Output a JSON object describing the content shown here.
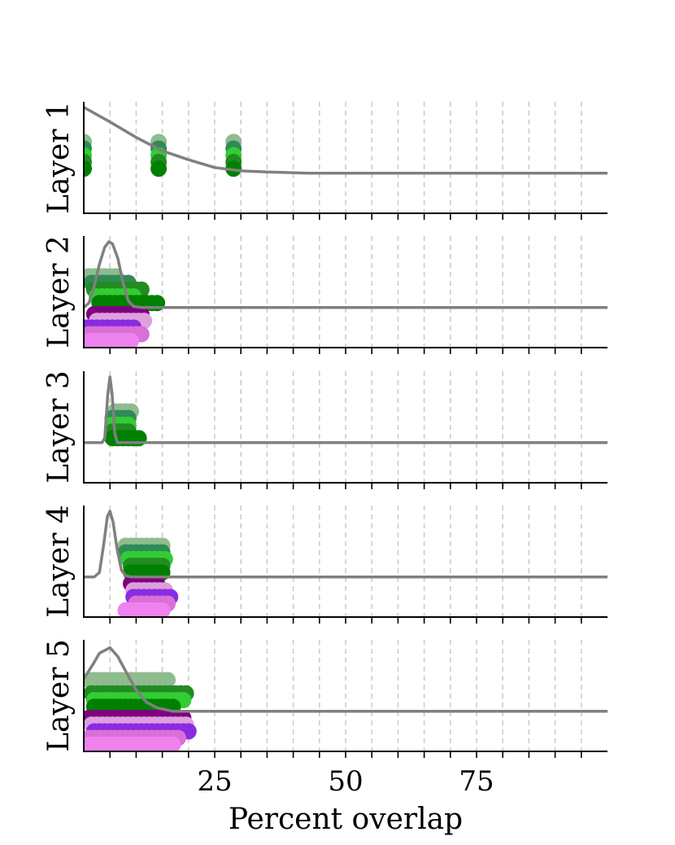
{
  "chart_data": {
    "type": "scatter",
    "xlabel": "Percent overlap",
    "xlim": [
      0,
      100
    ],
    "xticks": [
      25,
      50,
      75
    ],
    "minor_ticks": [
      5,
      10,
      15,
      20,
      25,
      30,
      35,
      40,
      45,
      50,
      55,
      60,
      65,
      70,
      75,
      80,
      85,
      90,
      95
    ],
    "grid": "vertical dashed",
    "colors": {
      "greens": [
        "#8fbc8f",
        "#2e8b57",
        "#32cd32",
        "#228b22",
        "#008000"
      ],
      "purples": [
        "#800080",
        "#dda0dd",
        "#8a2be2",
        "#da70d6",
        "#ee82ee"
      ],
      "density_line": "#808080"
    },
    "panels": [
      {
        "ylabel": "Layer 1",
        "rows": [
          {
            "color": "#8fbc8f",
            "level": 0.64,
            "x": [
              0,
              14.3,
              28.6
            ]
          },
          {
            "color": "#2e8b57",
            "level": 0.58,
            "x": [
              0,
              14.3,
              28.6
            ]
          },
          {
            "color": "#32cd32",
            "level": 0.52,
            "x": [
              0,
              14.3,
              28.6
            ]
          },
          {
            "color": "#228b22",
            "level": 0.46,
            "x": [
              0,
              14.3,
              28.6
            ]
          },
          {
            "color": "#008000",
            "level": 0.4,
            "x": [
              0,
              14.3,
              28.6
            ]
          }
        ],
        "density": [
          [
            0,
            0.95
          ],
          [
            5,
            0.82
          ],
          [
            10,
            0.68
          ],
          [
            15,
            0.56
          ],
          [
            20,
            0.48
          ],
          [
            25,
            0.41
          ],
          [
            30,
            0.38
          ],
          [
            35,
            0.37
          ],
          [
            43,
            0.36
          ],
          [
            100,
            0.36
          ]
        ]
      },
      {
        "ylabel": "Layer 2",
        "rows": [
          {
            "color": "#8fbc8f",
            "level": 0.64,
            "x": [
              1,
              2,
              3,
              4,
              5,
              6
            ]
          },
          {
            "color": "#2e8b57",
            "level": 0.58,
            "x": [
              1.5,
              2.5,
              3.5,
              4.5,
              5.5,
              6.5,
              7.5,
              8.5
            ]
          },
          {
            "color": "#228b22",
            "level": 0.52,
            "x": [
              2,
              3,
              4,
              5,
              6,
              7,
              8,
              9,
              10,
              11
            ]
          },
          {
            "color": "#32cd32",
            "level": 0.46,
            "x": [
              2.5,
              3.5,
              4.5,
              5.5,
              6.5,
              7.5,
              8.5,
              9.5
            ]
          },
          {
            "color": "#008000",
            "level": 0.4,
            "x": [
              3,
              4,
              5,
              6,
              7,
              8,
              9,
              10,
              11,
              12,
              13,
              14
            ]
          },
          {
            "color": "#800080",
            "level": 0.3,
            "x": [
              2,
              3,
              4,
              5,
              6,
              7,
              8,
              9,
              10,
              11
            ]
          },
          {
            "color": "#dda0dd",
            "level": 0.24,
            "x": [
              2.5,
              3.5,
              4.5,
              5.5,
              6.5,
              7.5,
              8.5,
              9.5,
              10.5,
              11.5
            ]
          },
          {
            "color": "#8a2be2",
            "level": 0.18,
            "x": [
              0.5,
              1.5,
              2.5,
              3.5,
              4.5,
              5.5,
              6.5,
              7.5,
              8.5,
              9.5
            ]
          },
          {
            "color": "#da70d6",
            "level": 0.12,
            "x": [
              1,
              2,
              3,
              4,
              5,
              6,
              7,
              8,
              9,
              10,
              11
            ]
          },
          {
            "color": "#ee82ee",
            "level": 0.06,
            "x": [
              1,
              2,
              3,
              4,
              5,
              6,
              7,
              8,
              9
            ]
          }
        ],
        "density": [
          [
            0,
            0.36
          ],
          [
            1,
            0.4
          ],
          [
            2,
            0.55
          ],
          [
            3,
            0.75
          ],
          [
            4,
            0.9
          ],
          [
            4.8,
            0.95
          ],
          [
            5.5,
            0.93
          ],
          [
            6.5,
            0.8
          ],
          [
            7.5,
            0.58
          ],
          [
            8.5,
            0.42
          ],
          [
            9.5,
            0.37
          ],
          [
            11,
            0.36
          ],
          [
            100,
            0.36
          ]
        ]
      },
      {
        "ylabel": "Layer 3",
        "rows": [
          {
            "color": "#8fbc8f",
            "level": 0.64,
            "x": [
              6,
              7,
              8,
              9
            ]
          },
          {
            "color": "#2e8b57",
            "level": 0.58,
            "x": [
              5.5,
              6.5,
              7.5,
              8.5
            ]
          },
          {
            "color": "#32cd32",
            "level": 0.52,
            "x": [
              5.5,
              6.5,
              7.5,
              8.5
            ]
          },
          {
            "color": "#228b22",
            "level": 0.46,
            "x": [
              5.5,
              6.5,
              7.5,
              8.5
            ]
          },
          {
            "color": "#008000",
            "level": 0.4,
            "x": [
              5.5,
              6.5,
              7.5,
              8.5,
              9.5,
              10.5
            ]
          }
        ],
        "density": [
          [
            0,
            0.36
          ],
          [
            3.5,
            0.36
          ],
          [
            4,
            0.4
          ],
          [
            4.6,
            0.8
          ],
          [
            5,
            0.95
          ],
          [
            5.4,
            0.8
          ],
          [
            5.9,
            0.45
          ],
          [
            6.4,
            0.36
          ],
          [
            100,
            0.36
          ]
        ]
      },
      {
        "ylabel": "Layer 4",
        "rows": [
          {
            "color": "#8fbc8f",
            "level": 0.64,
            "x": [
              8,
              9,
              10,
              11,
              12,
              13,
              14,
              15
            ]
          },
          {
            "color": "#2e8b57",
            "level": 0.58,
            "x": [
              8,
              9,
              10,
              11,
              12,
              13,
              14,
              15
            ]
          },
          {
            "color": "#32cd32",
            "level": 0.52,
            "x": [
              8.5,
              9.5,
              10.5,
              11.5,
              12.5,
              13.5,
              14.5,
              15.5
            ]
          },
          {
            "color": "#228b22",
            "level": 0.46,
            "x": [
              9,
              10,
              11,
              12,
              13,
              14,
              15
            ]
          },
          {
            "color": "#008000",
            "level": 0.4,
            "x": [
              9,
              10,
              11,
              12,
              13,
              14,
              15
            ]
          },
          {
            "color": "#800080",
            "level": 0.3,
            "x": [
              9,
              10,
              11,
              12,
              13,
              14
            ]
          },
          {
            "color": "#dda0dd",
            "level": 0.24,
            "x": [
              9.5,
              10.5,
              11.5,
              12.5,
              13.5,
              14.5,
              15.5
            ]
          },
          {
            "color": "#8a2be2",
            "level": 0.18,
            "x": [
              9.5,
              10.5,
              11.5,
              12.5,
              13.5,
              14.5,
              15.5,
              16.5
            ]
          },
          {
            "color": "#da70d6",
            "level": 0.12,
            "x": [
              10,
              11,
              12,
              13,
              14,
              15,
              16
            ]
          },
          {
            "color": "#ee82ee",
            "level": 0.06,
            "x": [
              8,
              9,
              10,
              11,
              12,
              13,
              14,
              15
            ]
          }
        ],
        "density": [
          [
            0,
            0.36
          ],
          [
            2,
            0.36
          ],
          [
            3,
            0.4
          ],
          [
            3.8,
            0.65
          ],
          [
            4.5,
            0.9
          ],
          [
            5,
            0.95
          ],
          [
            5.6,
            0.85
          ],
          [
            6.4,
            0.6
          ],
          [
            7.2,
            0.42
          ],
          [
            8,
            0.37
          ],
          [
            9,
            0.36
          ],
          [
            100,
            0.36
          ]
        ]
      },
      {
        "ylabel": "Layer 5",
        "rows": [
          {
            "color": "#8fbc8f",
            "level": 0.64,
            "x": [
              1,
              2,
              3,
              4,
              5,
              6,
              7,
              8,
              9,
              10,
              11,
              12,
              13,
              14,
              15,
              16
            ]
          },
          {
            "color": "#228b22",
            "level": 0.52,
            "x": [
              1.5,
              2.5,
              3.5,
              4.5,
              5.5,
              6.5,
              7.5,
              8.5,
              9.5,
              10.5,
              11.5,
              12.5,
              13.5,
              14.5,
              15.5,
              16.5,
              17.5,
              18.5,
              19.5
            ]
          },
          {
            "color": "#32cd32",
            "level": 0.46,
            "x": [
              2,
              3,
              4,
              5,
              6,
              7,
              8,
              9,
              10,
              11,
              12,
              13,
              14,
              15,
              16,
              17,
              18,
              19
            ]
          },
          {
            "color": "#008000",
            "level": 0.4,
            "x": [
              2,
              3,
              4,
              5,
              6,
              7,
              8,
              9,
              10,
              11,
              12,
              13,
              14,
              15,
              16,
              17
            ]
          },
          {
            "color": "#800080",
            "level": 0.3,
            "x": [
              1,
              2,
              3,
              4,
              5,
              6,
              7,
              8,
              9,
              10,
              11,
              12,
              13,
              14,
              15,
              16,
              17,
              18,
              19
            ]
          },
          {
            "color": "#dda0dd",
            "level": 0.24,
            "x": [
              1.5,
              2.5,
              3.5,
              4.5,
              5.5,
              6.5,
              7.5,
              8.5,
              9.5,
              10.5,
              11.5,
              12.5,
              13.5,
              14.5,
              15.5,
              16.5,
              17.5,
              18.5,
              19.5
            ]
          },
          {
            "color": "#8a2be2",
            "level": 0.18,
            "x": [
              2,
              3,
              4,
              5,
              6,
              7,
              8,
              9,
              10,
              11,
              12,
              13,
              14,
              15,
              16,
              17,
              18,
              19,
              20
            ]
          },
          {
            "color": "#da70d6",
            "level": 0.12,
            "x": [
              1,
              2,
              3,
              4,
              5,
              6,
              7,
              8,
              9,
              10,
              11,
              12,
              13,
              14,
              15,
              16,
              17,
              18
            ]
          },
          {
            "color": "#ee82ee",
            "level": 0.06,
            "x": [
              1,
              2,
              3,
              4,
              5,
              6,
              7,
              8,
              9,
              10,
              11,
              12,
              13,
              14,
              15,
              16,
              17
            ]
          }
        ],
        "density": [
          [
            0,
            0.65
          ],
          [
            2,
            0.8
          ],
          [
            3,
            0.88
          ],
          [
            5,
            0.93
          ],
          [
            6.5,
            0.85
          ],
          [
            8,
            0.72
          ],
          [
            10,
            0.55
          ],
          [
            12,
            0.44
          ],
          [
            14,
            0.39
          ],
          [
            17,
            0.36
          ],
          [
            100,
            0.36
          ]
        ]
      }
    ]
  }
}
